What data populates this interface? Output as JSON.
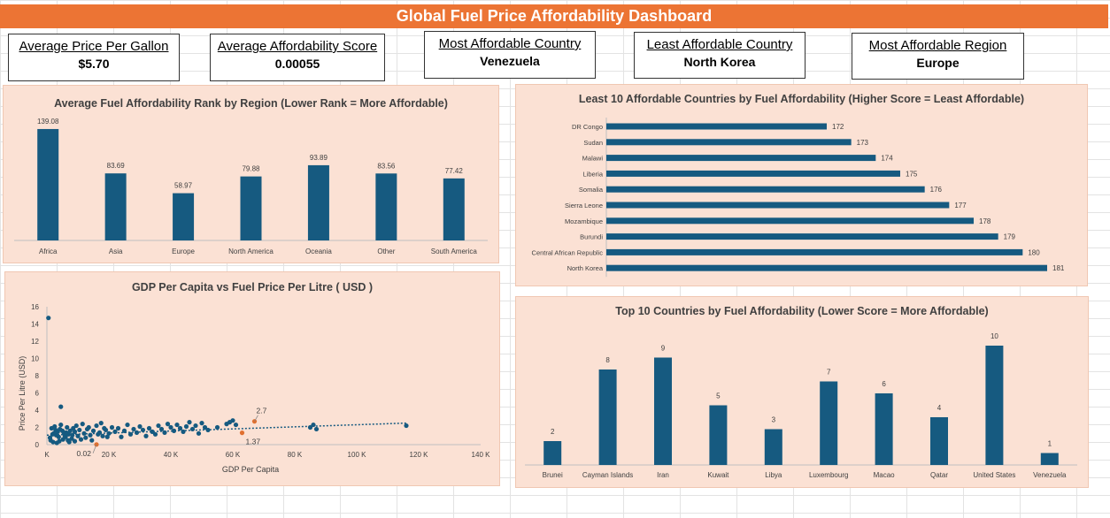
{
  "dashboard": {
    "title": "Global Fuel Price Affordability Dashboard"
  },
  "kpis": [
    {
      "label": "Average Price Per Gallon",
      "value": "$5.70"
    },
    {
      "label": "Average Affordability Score",
      "value": "0.00055"
    },
    {
      "label": "Most Affordable Country",
      "value": "Venezuela"
    },
    {
      "label": "Least Affordable Country",
      "value": "North Korea"
    },
    {
      "label": "Most Affordable Region",
      "value": "Europe"
    }
  ],
  "colors": {
    "header": "#ec7434",
    "panel": "#fbe1d4",
    "bar": "#165a80",
    "highlight": "#e07030"
  },
  "chart_data": [
    {
      "type": "bar",
      "title": "Average Fuel Affordability Rank by Region (Lower Rank = More Affordable)",
      "categories": [
        "Africa",
        "Asia",
        "Europe",
        "North America",
        "Oceania",
        "Other",
        "South America"
      ],
      "values": [
        139.08,
        83.69,
        58.97,
        79.88,
        93.89,
        83.56,
        77.42
      ],
      "data_labels": [
        "139.08",
        "83.69",
        "58.97",
        "79.88",
        "93.89",
        "83.56",
        "77.42"
      ],
      "ylim": [
        0,
        160
      ],
      "grid": false
    },
    {
      "type": "bar",
      "orientation": "horizontal",
      "title": "Least 10 Affordable Countries  by Fuel Affordability (Higher Score = Least Affordable)",
      "categories": [
        "DR Congo",
        "Sudan",
        "Malawi",
        "Liberia",
        "Somalia",
        "Sierra Leone",
        "Mozambique",
        "Burundi",
        "Central African Republic",
        "North Korea"
      ],
      "values": [
        172,
        173,
        174,
        175,
        176,
        177,
        178,
        179,
        180,
        181
      ],
      "data_labels": [
        "172",
        "173",
        "174",
        "175",
        "176",
        "177",
        "178",
        "179",
        "180",
        "181"
      ],
      "xlim": [
        163,
        181
      ],
      "grid": false
    },
    {
      "type": "scatter",
      "title": "GDP Per Capita vs Fuel Price Per Litre ( USD )",
      "xlabel": "GDP Per Capita",
      "ylabel": "Price Per Litre (USD)",
      "x_tick_labels": [
        "K",
        "20 K",
        "40 K",
        "60 K",
        "80 K",
        "100 K",
        "120 K",
        "140 K"
      ],
      "x_ticks": [
        0,
        20000,
        40000,
        60000,
        80000,
        100000,
        120000,
        140000
      ],
      "y_tick_labels": [
        "0",
        "2",
        "4",
        "6",
        "8",
        "10",
        "12",
        "14",
        "16"
      ],
      "y_ticks": [
        0,
        2,
        4,
        6,
        8,
        10,
        12,
        14,
        16
      ],
      "xlim": [
        0,
        140000
      ],
      "ylim": [
        0,
        16
      ],
      "trendline": {
        "x": [
          0,
          116000
        ],
        "y": [
          1.1,
          2.5
        ]
      },
      "annotations": [
        {
          "text": "2.7",
          "x": 67000,
          "y": 2.7
        },
        {
          "text": "1.37",
          "x": 63000,
          "y": 1.37
        },
        {
          "text": "0.02",
          "x": 16000,
          "y": 0.02
        }
      ],
      "series": [
        {
          "points": [
            [
              500,
              14.7
            ],
            [
              4500,
              4.4
            ],
            [
              1000,
              0.8
            ],
            [
              2000,
              0.3
            ],
            [
              3000,
              1.1
            ],
            [
              4000,
              0.4
            ],
            [
              5000,
              1.6
            ],
            [
              6000,
              0.9
            ],
            [
              7000,
              1.2
            ],
            [
              8000,
              0.7
            ],
            [
              9000,
              1.5
            ],
            [
              10000,
              1.0
            ],
            [
              11000,
              0.6
            ],
            [
              12000,
              1.3
            ],
            [
              13000,
              1.8
            ],
            [
              14000,
              1.1
            ],
            [
              15000,
              1.6
            ],
            [
              16000,
              2.2
            ],
            [
              17000,
              1.4
            ],
            [
              18000,
              1.0
            ],
            [
              19000,
              1.7
            ],
            [
              20000,
              1.3
            ],
            [
              21000,
              2.0
            ],
            [
              22000,
              1.5
            ],
            [
              23000,
              1.9
            ],
            [
              24000,
              0.9
            ],
            [
              25000,
              1.6
            ],
            [
              26000,
              2.3
            ],
            [
              27000,
              1.2
            ],
            [
              28000,
              1.8
            ],
            [
              29000,
              1.4
            ],
            [
              30000,
              2.1
            ],
            [
              31000,
              1.7
            ],
            [
              32000,
              1.0
            ],
            [
              33000,
              1.9
            ],
            [
              34000,
              1.5
            ],
            [
              35000,
              1.2
            ],
            [
              36000,
              2.2
            ],
            [
              37000,
              1.8
            ],
            [
              38000,
              1.4
            ],
            [
              39000,
              2.4
            ],
            [
              40000,
              2.0
            ],
            [
              41000,
              1.6
            ],
            [
              42000,
              2.3
            ],
            [
              43000,
              1.9
            ],
            [
              44000,
              1.5
            ],
            [
              45000,
              2.1
            ],
            [
              46000,
              2.6
            ],
            [
              47000,
              1.8
            ],
            [
              48000,
              2.2
            ],
            [
              49000,
              1.3
            ],
            [
              50000,
              2.5
            ],
            [
              51000,
              2.0
            ],
            [
              52000,
              1.7
            ],
            [
              55000,
              2.0
            ],
            [
              58000,
              2.4
            ],
            [
              59000,
              2.6
            ],
            [
              60000,
              2.8
            ],
            [
              61000,
              2.3
            ],
            [
              85000,
              2.0
            ],
            [
              86000,
              2.3
            ],
            [
              87000,
              1.8
            ],
            [
              116000,
              2.2
            ],
            [
              1500,
              1.9
            ],
            [
              2500,
              2.1
            ],
            [
              3500,
              1.5
            ],
            [
              4500,
              2.3
            ],
            [
              5500,
              1.3
            ],
            [
              6500,
              2.0
            ],
            [
              7500,
              1.6
            ],
            [
              8500,
              1.9
            ],
            [
              9500,
              2.2
            ],
            [
              10500,
              1.7
            ],
            [
              11500,
              2.4
            ],
            [
              12500,
              0.8
            ],
            [
              13500,
              2.0
            ],
            [
              14500,
              0.5
            ],
            [
              16500,
              1.2
            ],
            [
              17500,
              2.5
            ],
            [
              18500,
              1.9
            ],
            [
              19500,
              0.9
            ],
            [
              1200,
              0.5
            ],
            [
              2200,
              1.3
            ],
            [
              3200,
              0.2
            ],
            [
              4200,
              1.8
            ],
            [
              5200,
              0.6
            ],
            [
              6200,
              1.4
            ],
            [
              7200,
              0.3
            ],
            [
              8200,
              1.1
            ],
            [
              2800,
              1.7
            ],
            [
              3800,
              0.9
            ],
            [
              1800,
              1.2
            ],
            [
              5800,
              1.0
            ],
            [
              6800,
              0.5
            ],
            [
              9000,
              0.4
            ]
          ]
        },
        {
          "name": "highlighted",
          "points": [
            [
              67000,
              2.7
            ],
            [
              63000,
              1.37
            ],
            [
              16000,
              0.02
            ]
          ]
        }
      ]
    },
    {
      "type": "bar",
      "title": "Top 10 Countries by Fuel Affordability (Lower Score = More Affordable)",
      "categories": [
        "Brunei",
        "Cayman Islands",
        "Iran",
        "Kuwait",
        "Libya",
        "Luxembourg",
        "Macao",
        "Qatar",
        "United States",
        "Venezuela"
      ],
      "values": [
        2,
        8,
        9,
        5,
        3,
        7,
        6,
        4,
        10,
        1
      ],
      "data_labels": [
        "2",
        "8",
        "9",
        "5",
        "3",
        "7",
        "6",
        "4",
        "10",
        "1"
      ],
      "ylim": [
        0,
        11
      ],
      "grid": false
    }
  ]
}
